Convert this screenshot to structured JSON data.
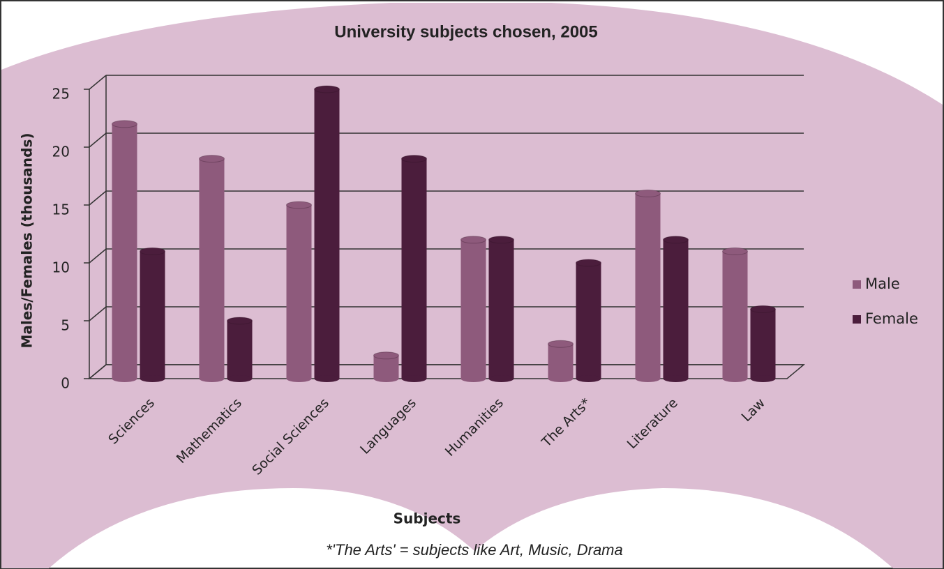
{
  "chart_data": {
    "type": "bar",
    "title": "University subjects chosen, 2005",
    "x_label": "Subjects",
    "y_label": "Males/Females (thousands)",
    "footnote": "*'The Arts' = subjects like Art, Music, Drama",
    "categories": [
      "Sciences",
      "Mathematics",
      "Social Sciences",
      "Languages",
      "Humanities",
      "The Arts*",
      "Literature",
      "Law"
    ],
    "series": [
      {
        "name": "Male",
        "color": "#8e5a7c",
        "values": [
          22,
          19,
          15,
          2,
          12,
          3,
          16,
          11
        ]
      },
      {
        "name": "Female",
        "color": "#4b1d3c",
        "values": [
          11,
          5,
          25,
          19,
          12,
          10,
          12,
          6
        ]
      }
    ],
    "ylim": [
      0,
      25
    ],
    "yticks": [
      0,
      5,
      10,
      15,
      20,
      25
    ],
    "grid": true,
    "legend": "right"
  }
}
